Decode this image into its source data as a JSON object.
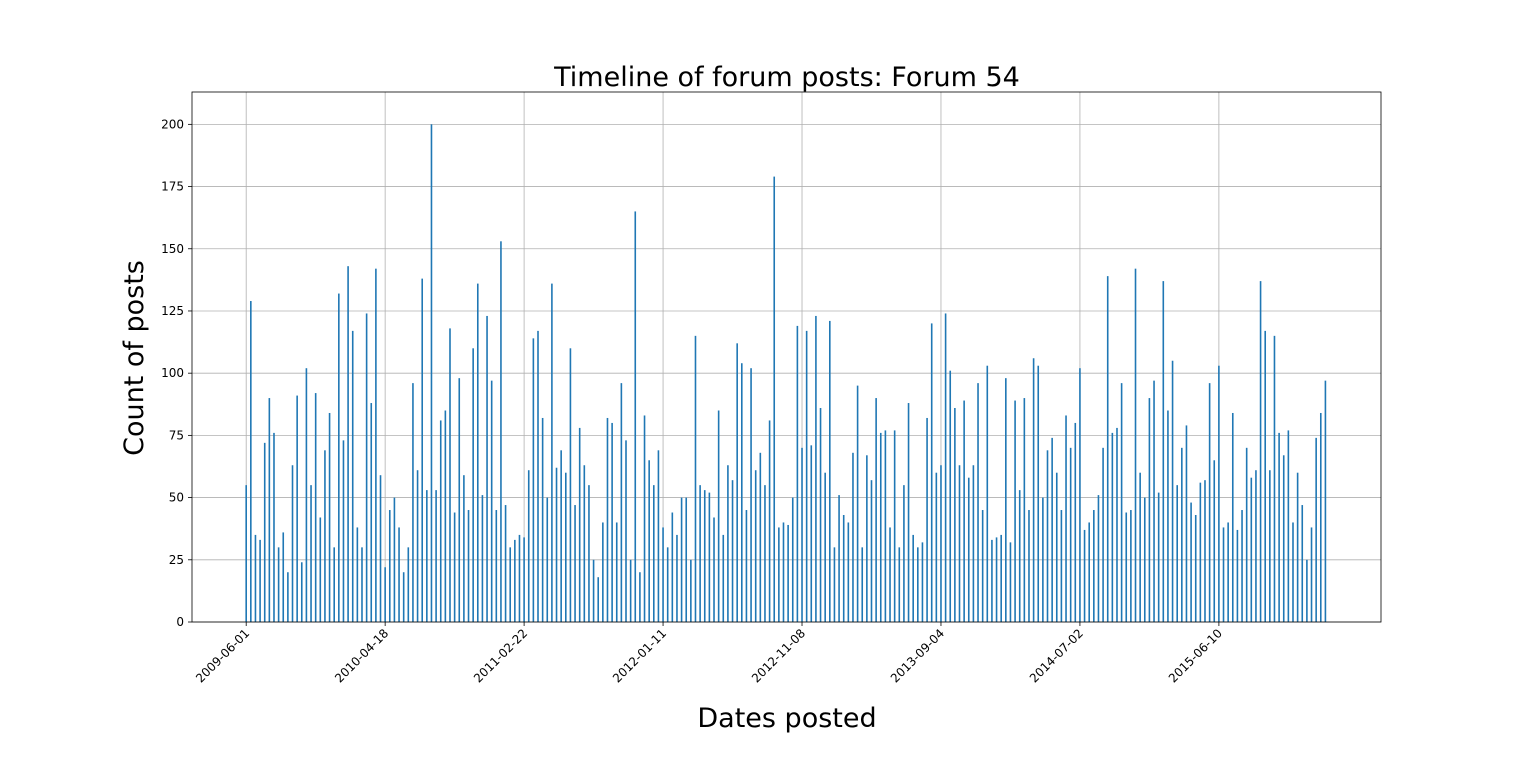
{
  "chart_data": {
    "type": "bar",
    "title": "Timeline of forum posts: Forum 54",
    "x_label": "Dates posted",
    "y_label": "Count of posts",
    "color": "#1f77b4",
    "grid": true,
    "xlim": [
      -117,
      2450
    ],
    "ylim": [
      0,
      213
    ],
    "xticks": [
      {
        "value": 0,
        "label": "2009-06-01"
      },
      {
        "value": 300,
        "label": "2010-04-18"
      },
      {
        "value": 600,
        "label": "2011-02-22"
      },
      {
        "value": 900,
        "label": "2012-01-11"
      },
      {
        "value": 1200,
        "label": "2012-11-08"
      },
      {
        "value": 1500,
        "label": "2013-09-04"
      },
      {
        "value": 1800,
        "label": "2014-07-02"
      },
      {
        "value": 2100,
        "label": "2015-06-10"
      }
    ],
    "yticks": [
      0,
      25,
      50,
      75,
      100,
      125,
      150,
      175,
      200
    ],
    "x": [
      0,
      10,
      20,
      30,
      40,
      50,
      60,
      70,
      80,
      90,
      100,
      110,
      120,
      130,
      140,
      150,
      160,
      170,
      180,
      190,
      200,
      210,
      220,
      230,
      240,
      250,
      260,
      270,
      280,
      290,
      300,
      310,
      320,
      330,
      340,
      350,
      360,
      370,
      380,
      390,
      400,
      410,
      420,
      430,
      440,
      450,
      460,
      470,
      480,
      490,
      500,
      510,
      520,
      530,
      540,
      550,
      560,
      570,
      580,
      590,
      600,
      610,
      620,
      630,
      640,
      650,
      660,
      670,
      680,
      690,
      700,
      710,
      720,
      730,
      740,
      750,
      760,
      770,
      780,
      790,
      800,
      810,
      820,
      830,
      840,
      850,
      860,
      870,
      880,
      890,
      900,
      910,
      920,
      930,
      940,
      950,
      960,
      970,
      980,
      990,
      1000,
      1010,
      1020,
      1030,
      1040,
      1050,
      1060,
      1070,
      1080,
      1090,
      1100,
      1110,
      1120,
      1130,
      1140,
      1150,
      1160,
      1170,
      1180,
      1190,
      1200,
      1210,
      1220,
      1230,
      1240,
      1250,
      1260,
      1270,
      1280,
      1290,
      1300,
      1310,
      1320,
      1330,
      1340,
      1350,
      1360,
      1370,
      1380,
      1390,
      1400,
      1410,
      1420,
      1430,
      1440,
      1450,
      1460,
      1470,
      1480,
      1490,
      1500,
      1510,
      1520,
      1530,
      1540,
      1550,
      1560,
      1570,
      1580,
      1590,
      1600,
      1610,
      1620,
      1630,
      1640,
      1650,
      1660,
      1670,
      1680,
      1690,
      1700,
      1710,
      1720,
      1730,
      1740,
      1750,
      1760,
      1770,
      1780,
      1790,
      1800,
      1810,
      1820,
      1830,
      1840,
      1850,
      1860,
      1870,
      1880,
      1890,
      1900,
      1910,
      1920,
      1930,
      1940,
      1950,
      1960,
      1970,
      1980,
      1990,
      2000,
      2010,
      2020,
      2030,
      2040,
      2050,
      2060,
      2070,
      2080,
      2090,
      2100,
      2110,
      2120,
      2130,
      2140,
      2150,
      2160,
      2170,
      2180,
      2190,
      2200,
      2210,
      2220,
      2230,
      2240,
      2250,
      2260,
      2270,
      2280,
      2290,
      2300,
      2310,
      2320,
      2330
    ],
    "values": [
      55,
      129,
      35,
      33,
      72,
      90,
      76,
      30,
      36,
      20,
      63,
      91,
      24,
      102,
      55,
      92,
      42,
      69,
      84,
      30,
      132,
      73,
      143,
      117,
      38,
      30,
      124,
      88,
      142,
      59,
      22,
      45,
      50,
      38,
      20,
      30,
      96,
      61,
      138,
      53,
      200,
      53,
      81,
      85,
      118,
      44,
      98,
      59,
      45,
      110,
      136,
      51,
      123,
      97,
      45,
      153,
      47,
      30,
      33,
      35,
      34,
      61,
      114,
      117,
      82,
      50,
      136,
      62,
      69,
      60,
      110,
      47,
      78,
      63,
      55,
      25,
      18,
      40,
      82,
      80,
      40,
      96,
      73,
      25,
      165,
      20,
      83,
      65,
      55,
      69,
      38,
      30,
      44,
      35,
      50,
      50,
      25,
      115,
      55,
      53,
      52,
      42,
      85,
      35,
      63,
      57,
      112,
      104,
      45,
      102,
      61,
      68,
      55,
      81,
      179,
      38,
      40,
      39,
      50,
      119,
      70,
      117,
      71,
      123,
      86,
      60,
      121,
      30,
      51,
      43,
      40,
      68,
      95,
      30,
      67,
      57,
      90,
      76,
      77,
      38,
      77,
      30,
      55,
      88,
      35,
      30,
      32,
      82,
      120,
      60,
      63,
      124,
      101,
      86,
      63,
      89,
      58,
      63,
      96,
      45,
      103,
      33,
      34,
      35,
      98,
      32,
      89,
      53,
      90,
      45,
      106,
      103,
      50,
      69,
      74,
      60,
      45,
      83,
      70,
      80,
      102,
      37,
      40,
      45,
      51,
      70,
      139,
      76,
      78,
      96,
      44,
      45,
      142,
      60,
      50,
      90,
      97,
      52,
      137,
      85,
      105,
      55,
      70,
      79,
      48,
      43,
      56,
      57,
      96,
      65,
      103,
      38,
      40,
      84,
      37,
      45,
      70,
      58,
      61,
      137,
      117,
      61,
      115,
      76,
      67,
      77,
      40,
      60,
      47,
      25,
      38,
      74,
      84,
      97
    ]
  }
}
